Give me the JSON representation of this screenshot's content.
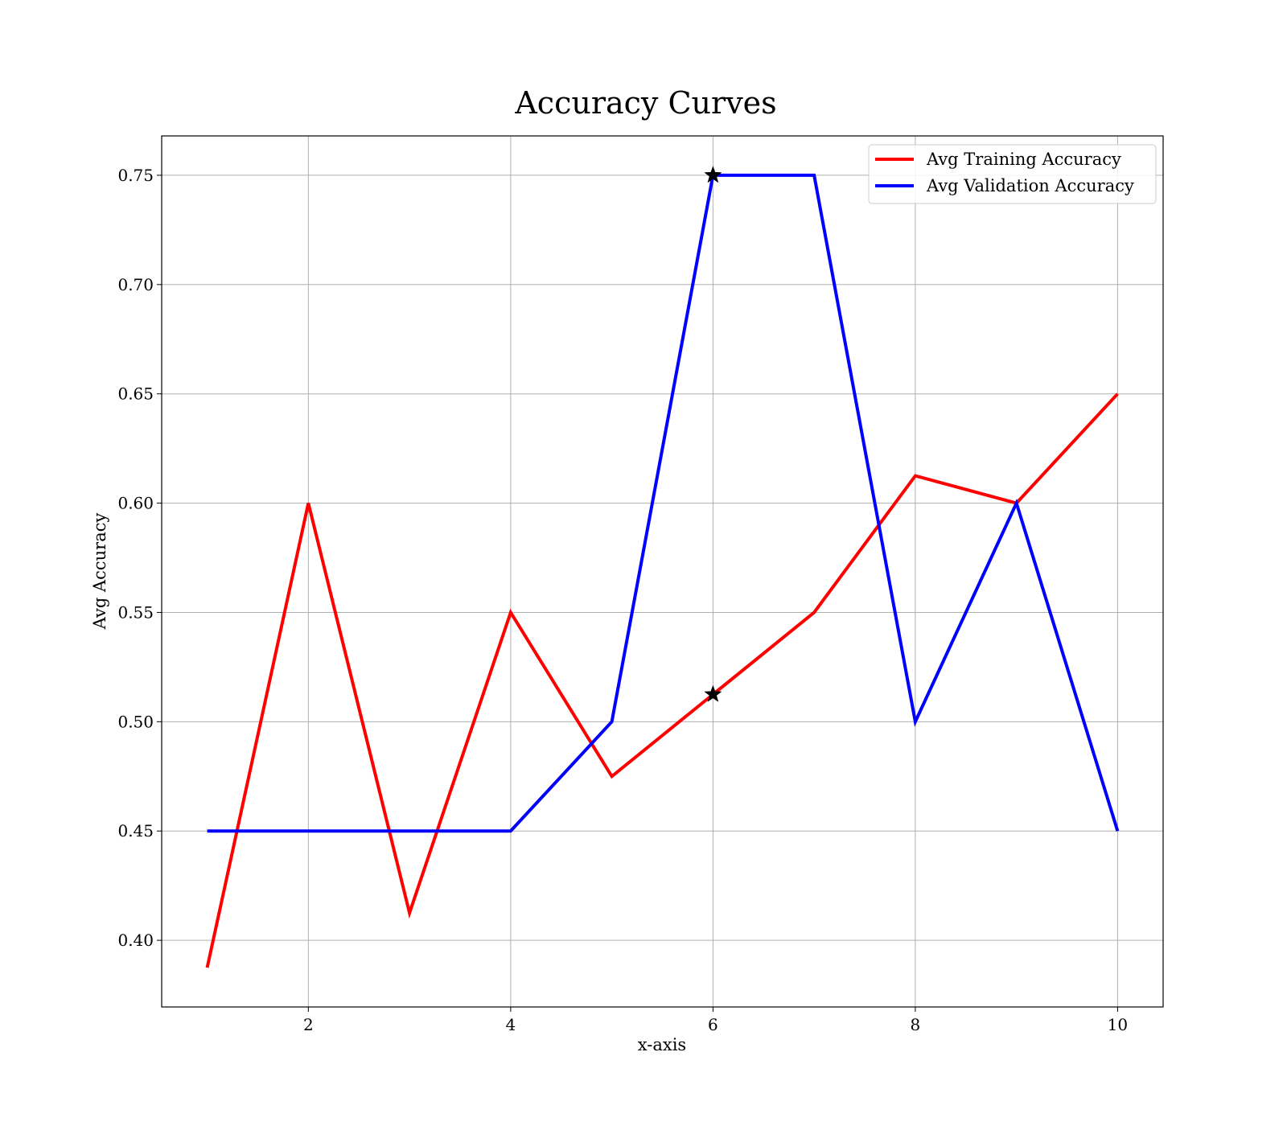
{
  "chart_data": {
    "type": "line",
    "title": "Accuracy Curves",
    "xlabel": "x-axis",
    "ylabel": "Avg Accuracy",
    "xlim": [
      0.55,
      10.45
    ],
    "ylim": [
      0.3695,
      0.768
    ],
    "xticks": [
      2,
      4,
      6,
      8,
      10
    ],
    "xtick_labels": [
      "2",
      "4",
      "6",
      "8",
      "10"
    ],
    "yticks": [
      0.4,
      0.45,
      0.5,
      0.55,
      0.6,
      0.65,
      0.7,
      0.75
    ],
    "ytick_labels": [
      "0.40",
      "0.45",
      "0.50",
      "0.55",
      "0.60",
      "0.65",
      "0.70",
      "0.75"
    ],
    "grid": true,
    "legend_position": "top-right",
    "x": [
      1,
      2,
      3,
      4,
      5,
      6,
      7,
      8,
      9,
      10
    ],
    "series": [
      {
        "name": "Avg Training Accuracy",
        "color": "#ff0000",
        "values": [
          0.3875,
          0.6,
          0.4125,
          0.55,
          0.475,
          0.5125,
          0.55,
          0.6125,
          0.6,
          0.65
        ],
        "marker_x": 6,
        "marker_y": 0.5125,
        "marker": "star"
      },
      {
        "name": "Avg Validation Accuracy",
        "color": "#0000ff",
        "values": [
          0.45,
          0.45,
          0.45,
          0.45,
          0.5,
          0.75,
          0.75,
          0.5,
          0.6,
          0.45
        ],
        "marker_x": 6,
        "marker_y": 0.75,
        "marker": "star"
      }
    ]
  }
}
